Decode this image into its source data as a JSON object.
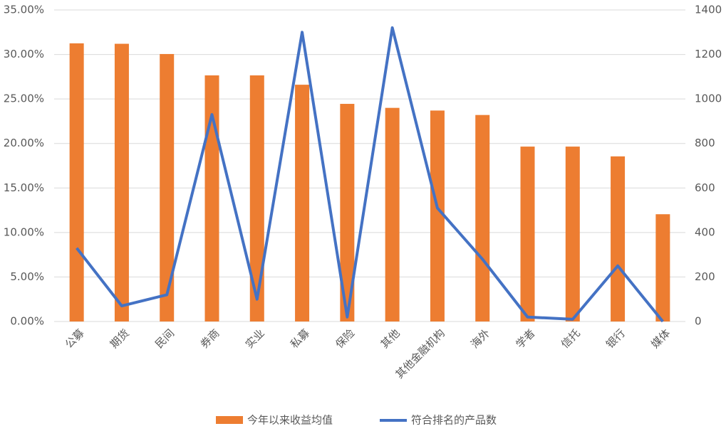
{
  "chart_data": {
    "type": "bar_line",
    "categories": [
      "公募",
      "期货",
      "民间",
      "券商",
      "实业",
      "私募",
      "保险",
      "其他",
      "其他金融机构",
      "海外",
      "学者",
      "信托",
      "银行",
      "媒体"
    ],
    "series": [
      {
        "name": "今年以来收益均值",
        "type": "bar",
        "color": "#ED7D31",
        "values": [
          31.25,
          31.2,
          30.05,
          27.65,
          27.65,
          26.6,
          24.45,
          24.0,
          23.7,
          23.2,
          19.65,
          19.65,
          18.55,
          12.05
        ]
      },
      {
        "name": "符合排名的产品数",
        "type": "line",
        "axis": "y2",
        "color": "#4472C4",
        "values": [
          330,
          70,
          120,
          930,
          100,
          1300,
          20,
          1320,
          510,
          280,
          20,
          10,
          250,
          0
        ]
      }
    ],
    "ylim": [
      0,
      35
    ],
    "yticks": [
      {
        "value": 0,
        "label": "0.00%"
      },
      {
        "value": 5,
        "label": "5.00%"
      },
      {
        "value": 10,
        "label": "10.00%"
      },
      {
        "value": 15,
        "label": "15.00%"
      },
      {
        "value": 20,
        "label": "20.00%"
      },
      {
        "value": 25,
        "label": "25.00%"
      },
      {
        "value": 30,
        "label": "30.00%"
      },
      {
        "value": 35,
        "label": "35.00%"
      }
    ],
    "y2lim": [
      0,
      1400
    ],
    "y2ticks": [
      0,
      200,
      400,
      600,
      800,
      1000,
      1200,
      1400
    ],
    "grid": true
  }
}
